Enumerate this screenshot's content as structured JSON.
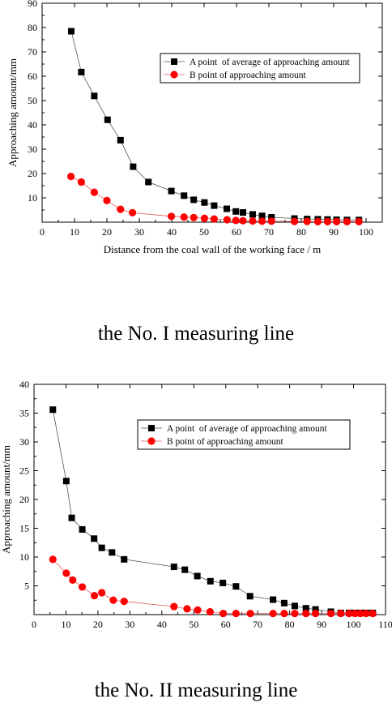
{
  "captions": [
    "the No. I measuring line",
    "the No. II measuring line"
  ],
  "chart_data": [
    {
      "type": "line",
      "title": "",
      "xlabel": "Distance from the coal wall of the working face / m",
      "ylabel": "Approaching amount/mm",
      "xlim": [
        0,
        105
      ],
      "ylim": [
        0,
        90
      ],
      "xticks": [
        0,
        10,
        20,
        30,
        40,
        50,
        60,
        70,
        80,
        90,
        100
      ],
      "yticks": [
        10,
        20,
        30,
        40,
        50,
        60,
        70,
        80,
        90
      ],
      "legend_position": "top-right",
      "grid": false,
      "series": [
        {
          "name": "A point  of average of approaching amount",
          "color": "#000000",
          "marker": "square",
          "x": [
            9,
            12.1,
            16.1,
            20.2,
            24.2,
            28.1,
            32.8,
            39.9,
            43.8,
            46.8,
            50.1,
            53.1,
            57,
            59.8,
            62,
            65,
            67.9,
            70.8,
            77.9,
            81.8,
            85.1,
            88.1,
            90.9,
            94.1,
            97.8
          ],
          "y": [
            78.5,
            61.7,
            51.9,
            42.1,
            33.7,
            22.8,
            16.5,
            12.8,
            10.9,
            9.2,
            8.1,
            6.8,
            5.5,
            4.4,
            4,
            3.2,
            2.6,
            2,
            1.5,
            1.3,
            1.2,
            1.1,
            1,
            0.9,
            0.9
          ]
        },
        {
          "name": "B point of approaching amount",
          "color": "#ff0000",
          "marker": "circle",
          "x": [
            8.9,
            12.1,
            16.1,
            20,
            24.2,
            27.9,
            39.9,
            43.8,
            46.8,
            50.1,
            53.1,
            57.1,
            59.8,
            62,
            65,
            67.9,
            70.8,
            77.9,
            81.8,
            85.1,
            88.1,
            90.9,
            94.1,
            97.8
          ],
          "y": [
            18.8,
            16.5,
            12.3,
            8.9,
            5.3,
            3.9,
            2.4,
            2.1,
            1.9,
            1.6,
            1.3,
            1,
            0.7,
            0.6,
            0.5,
            0.4,
            0.4,
            0.3,
            0.3,
            0.2,
            0.2,
            0.2,
            0.2,
            0.2
          ]
        }
      ]
    },
    {
      "type": "line",
      "title": "",
      "xlabel": "Distance from the coal wall of the working face / m",
      "ylabel": "Approaching amount/mm",
      "xlim": [
        0,
        110
      ],
      "ylim": [
        0,
        40
      ],
      "xticks": [
        0,
        10,
        20,
        30,
        40,
        50,
        60,
        70,
        80,
        90,
        100,
        110
      ],
      "yticks": [
        5,
        10,
        15,
        20,
        25,
        30,
        35,
        40
      ],
      "legend_position": "top-right",
      "grid": false,
      "series": [
        {
          "name": "A point  of average of approaching amount",
          "color": "#000000",
          "marker": "square",
          "x": [
            5.9,
            10.1,
            11.8,
            15.1,
            18.8,
            21.2,
            24.4,
            28.2,
            43.8,
            47.2,
            51.1,
            55.2,
            59.1,
            63.2,
            67.6,
            74.8,
            78.3,
            81.6,
            85.1,
            88.1,
            92.9,
            96,
            98.6,
            100.5,
            102.1,
            103.9,
            106
          ],
          "y": [
            35.6,
            23.2,
            16.8,
            14.8,
            13.2,
            11.6,
            10.8,
            9.6,
            8.3,
            7.8,
            6.7,
            5.8,
            5.5,
            4.9,
            3.2,
            2.6,
            2,
            1.5,
            1.1,
            0.9,
            0.5,
            0.3,
            0.3,
            0.3,
            0.3,
            0.3,
            0.3
          ]
        },
        {
          "name": "B point of approaching amount",
          "color": "#ff0000",
          "marker": "circle",
          "x": [
            5.9,
            10.1,
            12.1,
            15.1,
            18.9,
            21.2,
            24.8,
            28.2,
            43.8,
            47.9,
            51.2,
            55.1,
            59.2,
            63.2,
            67.7,
            74.8,
            78.3,
            81.6,
            85.1,
            88.1,
            92.9,
            96,
            98.6,
            100.5,
            102.1,
            103.9,
            106
          ],
          "y": [
            9.6,
            7.2,
            6,
            4.8,
            3.3,
            3.8,
            2.5,
            2.3,
            1.4,
            1,
            0.8,
            0.5,
            0.2,
            0.2,
            0.2,
            0.2,
            0.2,
            0.2,
            0.2,
            0.2,
            0.2,
            0.2,
            0.2,
            0.2,
            0.2,
            0.2,
            0.2
          ]
        }
      ]
    }
  ]
}
